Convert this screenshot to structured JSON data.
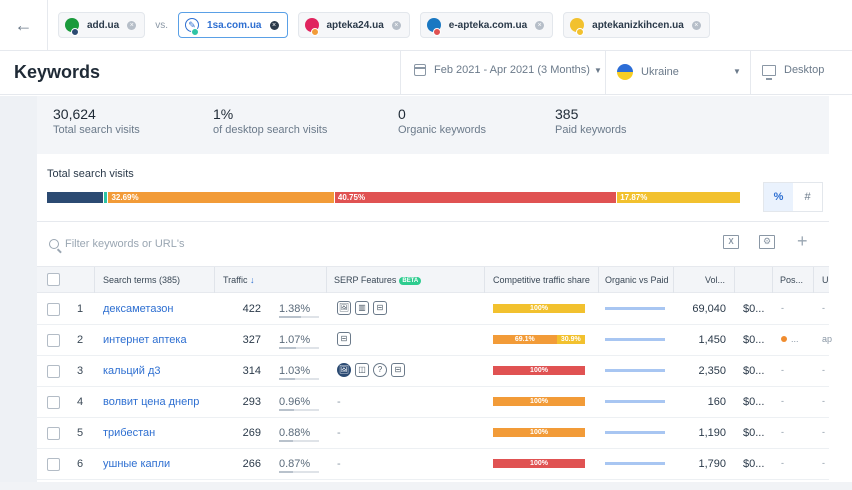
{
  "topbar": {
    "back_icon": "arrow-left-icon",
    "vs_label": "vs.",
    "competitors": [
      {
        "name": "add.ua",
        "favicon": "#1a9a3c",
        "dot": "#2b4a72",
        "active": false
      },
      {
        "name": "1sa.com.ua",
        "favicon": "#2e6fd1",
        "dot": "#2ec4a5",
        "active": true
      },
      {
        "name": "apteka24.ua",
        "favicon": "#e0245e",
        "dot": "#f29b38",
        "active": false
      },
      {
        "name": "e-apteka.com.ua",
        "favicon": "#1a78c2",
        "dot": "#e05252",
        "active": false
      },
      {
        "name": "aptekanizkihcen.ua",
        "favicon": "#f2c12e",
        "dot": "#f2c12e",
        "active": false
      }
    ]
  },
  "header": {
    "title": "Keywords",
    "date_range": "Feb 2021 - Apr 2021 (3 Months)",
    "country": "Ukraine",
    "device": "Desktop"
  },
  "stats": [
    {
      "value": "30,624",
      "label": "Total search visits"
    },
    {
      "value": "1%",
      "label": "of desktop search visits"
    },
    {
      "value": "0",
      "label": "Organic keywords"
    },
    {
      "value": "385",
      "label": "Paid keywords"
    }
  ],
  "total_visits": {
    "label": "Total search visits",
    "segments": [
      {
        "label": "",
        "share": 8.3,
        "color": "#2b4a72"
      },
      {
        "label": "",
        "share": 0.5,
        "color": "#2ec4a5"
      },
      {
        "label": "32.69%",
        "share": 32.69,
        "color": "#f29b38"
      },
      {
        "label": "40.75%",
        "share": 40.75,
        "color": "#e05252"
      },
      {
        "label": "17.87%",
        "share": 17.87,
        "color": "#f2c12e"
      }
    ],
    "toggle": {
      "percent": "%",
      "count": "#"
    }
  },
  "filter": {
    "placeholder": "Filter keywords or URL's"
  },
  "table": {
    "headers": {
      "search_terms": "Search terms (385)",
      "traffic": "Traffic",
      "serp": "SERP Features",
      "beta": "BETA",
      "competitive": "Competitive traffic share",
      "ovp": "Organic vs Paid",
      "volume": "Vol...",
      "pos": "Pos...",
      "url": "U"
    },
    "rows": [
      {
        "n": "1",
        "kw": "дексаметазон",
        "traffic": "422",
        "pct": "1.38%",
        "pct_val": 0.55,
        "serp": [
          "🖼",
          "▥",
          "⊟"
        ],
        "share": [
          {
            "v": "100%",
            "w": 100,
            "c": "#f2c12e"
          }
        ],
        "volume": "69,040",
        "cpc": "$0...",
        "pos": "-",
        "pos_dot": false,
        "url": "-"
      },
      {
        "n": "2",
        "kw": "интернет аптека",
        "traffic": "327",
        "pct": "1.07%",
        "pct_val": 0.43,
        "serp": [
          "⊟"
        ],
        "share": [
          {
            "v": "69.1%",
            "w": 69.1,
            "c": "#f29b38"
          },
          {
            "v": "30.9%",
            "w": 30.9,
            "c": "#f2c12e"
          }
        ],
        "volume": "1,450",
        "cpc": "$0...",
        "pos": "...",
        "pos_dot": true,
        "url": "ap"
      },
      {
        "n": "3",
        "kw": "кальций д3",
        "traffic": "314",
        "pct": "1.03%",
        "pct_val": 0.41,
        "serp": [
          "🖼",
          "◫",
          "?",
          "⊟"
        ],
        "share": [
          {
            "v": "100%",
            "w": 100,
            "c": "#e05252"
          }
        ],
        "volume": "2,350",
        "cpc": "$0...",
        "pos": "-",
        "pos_dot": false,
        "url": "-"
      },
      {
        "n": "4",
        "kw": "волвит цена днепр",
        "traffic": "293",
        "pct": "0.96%",
        "pct_val": 0.38,
        "serp": [],
        "share": [
          {
            "v": "100%",
            "w": 100,
            "c": "#f29b38"
          }
        ],
        "volume": "160",
        "cpc": "$0...",
        "pos": "-",
        "pos_dot": false,
        "url": "-"
      },
      {
        "n": "5",
        "kw": "трибестан",
        "traffic": "269",
        "pct": "0.88%",
        "pct_val": 0.35,
        "serp": [],
        "share": [
          {
            "v": "100%",
            "w": 100,
            "c": "#f29b38"
          }
        ],
        "volume": "1,190",
        "cpc": "$0...",
        "pos": "-",
        "pos_dot": false,
        "url": "-"
      },
      {
        "n": "6",
        "kw": "ушные капли",
        "traffic": "266",
        "pct": "0.87%",
        "pct_val": 0.35,
        "serp": [],
        "share": [
          {
            "v": "100%",
            "w": 100,
            "c": "#e05252"
          }
        ],
        "volume": "1,790",
        "cpc": "$0...",
        "pos": "-",
        "pos_dot": false,
        "url": "-"
      }
    ],
    "serp_empty": "-"
  }
}
